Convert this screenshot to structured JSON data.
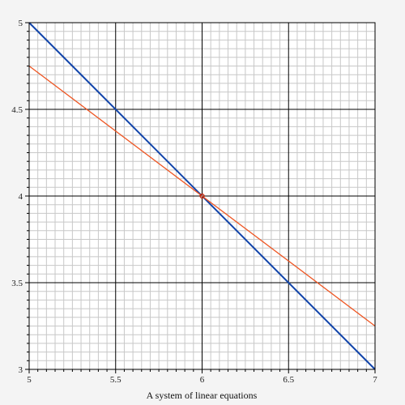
{
  "chart_data": {
    "type": "line",
    "title": "",
    "caption": "A system of linear equations",
    "xlabel": "",
    "ylabel": "",
    "xlim": [
      5,
      7
    ],
    "ylim": [
      3,
      5
    ],
    "x_ticks": [
      "5",
      "5.5",
      "6",
      "6.5",
      "7"
    ],
    "y_ticks": [
      "3",
      "3.5",
      "4",
      "4.5",
      "5"
    ],
    "x_tick_values": [
      5,
      5.5,
      6,
      6.5,
      7
    ],
    "y_tick_values": [
      3,
      3.5,
      4,
      4.5,
      5
    ],
    "grid": true,
    "series": [
      {
        "color": "#1144aa",
        "points": [
          [
            5,
            5
          ],
          [
            7,
            3
          ]
        ]
      },
      {
        "color": "#ee5522",
        "points": [
          [
            5,
            4.75
          ],
          [
            7,
            3.25
          ]
        ]
      }
    ],
    "intersection": {
      "x": 6,
      "y": 4,
      "color": "#cc2200"
    }
  }
}
